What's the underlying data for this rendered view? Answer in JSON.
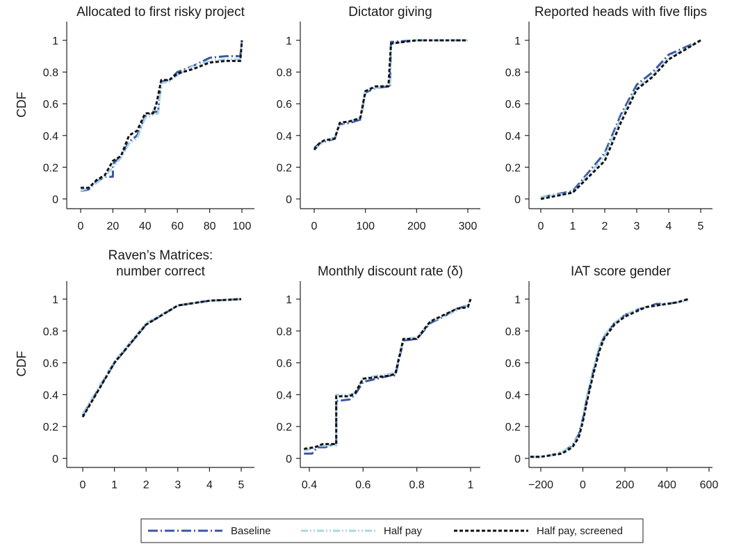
{
  "series_styles": [
    {
      "name": "Baseline",
      "color": "#3b56a0",
      "dash": "14,4,2,4",
      "width": 3
    },
    {
      "name": "Half pay",
      "color": "#a9d4e6",
      "dash": "10,3,2,3,2,3",
      "width": 3
    },
    {
      "name": "Half pay, screened",
      "color": "#111111",
      "dash": "5,3",
      "width": 3
    }
  ],
  "chart_data": [
    {
      "type": "line",
      "title": "Allocated to first risky project",
      "ylabel": "CDF",
      "xlim": [
        0,
        100
      ],
      "ylim": [
        0,
        1
      ],
      "xticks": [
        0,
        20,
        40,
        60,
        80,
        100
      ],
      "yticks": [
        0,
        0.2,
        0.4,
        0.6,
        0.8,
        1
      ],
      "series": [
        {
          "name": "Baseline",
          "x": [
            0,
            5,
            10,
            15,
            19,
            20,
            20,
            25,
            30,
            35,
            40,
            45,
            48,
            50,
            55,
            60,
            70,
            80,
            90,
            99,
            100
          ],
          "y": [
            0.05,
            0.06,
            0.11,
            0.14,
            0.14,
            0.14,
            0.22,
            0.27,
            0.36,
            0.4,
            0.52,
            0.55,
            0.55,
            0.74,
            0.75,
            0.8,
            0.84,
            0.89,
            0.9,
            0.9,
            1.0
          ]
        },
        {
          "name": "Half pay",
          "x": [
            0,
            5,
            10,
            15,
            20,
            25,
            28,
            30,
            35,
            40,
            45,
            48,
            50,
            55,
            60,
            70,
            80,
            90,
            99,
            100
          ],
          "y": [
            0.05,
            0.07,
            0.1,
            0.14,
            0.2,
            0.26,
            0.31,
            0.35,
            0.38,
            0.51,
            0.53,
            0.54,
            0.73,
            0.74,
            0.78,
            0.84,
            0.87,
            0.88,
            0.88,
            1.0
          ]
        },
        {
          "name": "Half pay, screened",
          "x": [
            0,
            5,
            10,
            15,
            20,
            25,
            30,
            35,
            40,
            45,
            47,
            50,
            55,
            60,
            70,
            80,
            90,
            99,
            100
          ],
          "y": [
            0.07,
            0.07,
            0.12,
            0.15,
            0.24,
            0.27,
            0.4,
            0.43,
            0.54,
            0.54,
            0.6,
            0.75,
            0.75,
            0.79,
            0.82,
            0.86,
            0.87,
            0.87,
            1.0
          ]
        }
      ]
    },
    {
      "type": "line",
      "title": "Dictator giving",
      "ylabel": "",
      "xlim": [
        0,
        300
      ],
      "ylim": [
        0,
        1
      ],
      "xticks": [
        0,
        100,
        200,
        300
      ],
      "yticks": [
        0,
        0.2,
        0.4,
        0.6,
        0.8,
        1
      ],
      "series": [
        {
          "name": "Baseline",
          "x": [
            0,
            10,
            20,
            40,
            50,
            70,
            90,
            100,
            120,
            148,
            150,
            200,
            300
          ],
          "y": [
            0.32,
            0.35,
            0.36,
            0.38,
            0.47,
            0.48,
            0.5,
            0.67,
            0.7,
            0.71,
            0.99,
            1.0,
            1.0
          ]
        },
        {
          "name": "Half pay",
          "x": [
            0,
            10,
            20,
            40,
            50,
            70,
            90,
            100,
            120,
            148,
            150,
            200,
            300
          ],
          "y": [
            0.31,
            0.34,
            0.36,
            0.39,
            0.47,
            0.49,
            0.51,
            0.68,
            0.7,
            0.72,
            0.98,
            1.0,
            1.0
          ]
        },
        {
          "name": "Half pay, screened",
          "x": [
            0,
            10,
            20,
            40,
            50,
            70,
            90,
            100,
            120,
            145,
            150,
            200,
            300
          ],
          "y": [
            0.31,
            0.35,
            0.37,
            0.38,
            0.48,
            0.49,
            0.51,
            0.68,
            0.71,
            0.71,
            0.98,
            1.0,
            1.0
          ]
        }
      ]
    },
    {
      "type": "line",
      "title": "Reported heads with five flips",
      "ylabel": "",
      "xlim": [
        0,
        5
      ],
      "ylim": [
        0,
        1
      ],
      "xticks": [
        0,
        1,
        2,
        3,
        4,
        5
      ],
      "yticks": [
        0,
        0.2,
        0.4,
        0.6,
        0.8,
        1
      ],
      "series": [
        {
          "name": "Baseline",
          "x": [
            0,
            1,
            2,
            2.5,
            3,
            3.5,
            4,
            5
          ],
          "y": [
            0.01,
            0.05,
            0.29,
            0.53,
            0.72,
            0.8,
            0.91,
            1.0
          ]
        },
        {
          "name": "Half pay",
          "x": [
            0,
            1,
            2,
            2.5,
            3,
            3.5,
            4,
            5
          ],
          "y": [
            0.01,
            0.04,
            0.27,
            0.51,
            0.7,
            0.78,
            0.89,
            1.0
          ]
        },
        {
          "name": "Half pay, screened",
          "x": [
            0,
            1,
            2,
            2.5,
            3,
            3.5,
            4,
            5
          ],
          "y": [
            0.0,
            0.04,
            0.24,
            0.48,
            0.69,
            0.77,
            0.88,
            1.0
          ]
        }
      ]
    },
    {
      "type": "line",
      "title": "Raven’s Matrices:\nnumber correct",
      "ylabel": "CDF",
      "xlim": [
        0,
        5
      ],
      "ylim": [
        0,
        1
      ],
      "xticks": [
        0,
        1,
        2,
        3,
        4,
        5
      ],
      "yticks": [
        0,
        0.2,
        0.4,
        0.6,
        0.8,
        1
      ],
      "series": [
        {
          "name": "Baseline",
          "x": [
            0,
            1,
            2,
            3,
            4,
            5
          ],
          "y": [
            0.27,
            0.6,
            0.84,
            0.96,
            0.99,
            1.0
          ]
        },
        {
          "name": "Half pay",
          "x": [
            0,
            1,
            2,
            3,
            4,
            5
          ],
          "y": [
            0.28,
            0.61,
            0.85,
            0.96,
            0.99,
            1.0
          ]
        },
        {
          "name": "Half pay, screened",
          "x": [
            0,
            1,
            2,
            3,
            4,
            5
          ],
          "y": [
            0.26,
            0.6,
            0.84,
            0.96,
            0.99,
            1.0
          ]
        }
      ]
    },
    {
      "type": "line",
      "title": "Monthly discount rate (δ)",
      "ylabel": "",
      "xlim": [
        0.38,
        1.0
      ],
      "ylim": [
        0,
        1
      ],
      "xticks": [
        0.4,
        0.6,
        0.8,
        1
      ],
      "yticks": [
        0,
        0.2,
        0.4,
        0.6,
        0.8,
        1
      ],
      "series": [
        {
          "name": "Baseline",
          "x": [
            0.38,
            0.41,
            0.43,
            0.46,
            0.49,
            0.5,
            0.5,
            0.55,
            0.57,
            0.6,
            0.65,
            0.7,
            0.72,
            0.75,
            0.8,
            0.85,
            0.9,
            0.95,
            0.99,
            1.0
          ],
          "y": [
            0.03,
            0.03,
            0.07,
            0.07,
            0.09,
            0.09,
            0.36,
            0.37,
            0.4,
            0.48,
            0.5,
            0.52,
            0.52,
            0.74,
            0.75,
            0.85,
            0.89,
            0.94,
            0.96,
            1.0
          ]
        },
        {
          "name": "Half pay",
          "x": [
            0.38,
            0.41,
            0.44,
            0.47,
            0.5,
            0.5,
            0.55,
            0.57,
            0.6,
            0.65,
            0.7,
            0.72,
            0.75,
            0.8,
            0.85,
            0.9,
            0.95,
            0.99,
            1.0
          ],
          "y": [
            0.05,
            0.06,
            0.08,
            0.08,
            0.08,
            0.4,
            0.4,
            0.41,
            0.5,
            0.52,
            0.53,
            0.54,
            0.75,
            0.76,
            0.86,
            0.89,
            0.93,
            0.96,
            1.0
          ]
        },
        {
          "name": "Half pay, screened",
          "x": [
            0.38,
            0.42,
            0.45,
            0.5,
            0.5,
            0.55,
            0.57,
            0.6,
            0.65,
            0.7,
            0.72,
            0.75,
            0.8,
            0.85,
            0.9,
            0.95,
            0.99,
            1.0
          ],
          "y": [
            0.06,
            0.07,
            0.09,
            0.09,
            0.39,
            0.39,
            0.41,
            0.5,
            0.51,
            0.52,
            0.53,
            0.75,
            0.75,
            0.86,
            0.9,
            0.94,
            0.95,
            1.0
          ]
        }
      ]
    },
    {
      "type": "line",
      "title": "IAT score gender",
      "ylabel": "",
      "xlim": [
        -300,
        700
      ],
      "ylim": [
        0,
        1
      ],
      "xticks": [
        -200,
        0,
        200,
        400,
        600
      ],
      "xtick_labels": [
        "−200",
        "0",
        "200",
        "400",
        "600"
      ],
      "yticks": [
        0,
        0.2,
        0.4,
        0.6,
        0.8,
        1
      ],
      "series": [
        {
          "name": "Baseline",
          "x": [
            -250,
            -200,
            -150,
            -100,
            -50,
            -20,
            0,
            20,
            50,
            80,
            100,
            150,
            200,
            250,
            300,
            350,
            400,
            450,
            500
          ],
          "y": [
            0.01,
            0.01,
            0.02,
            0.04,
            0.08,
            0.15,
            0.25,
            0.38,
            0.55,
            0.7,
            0.76,
            0.85,
            0.9,
            0.93,
            0.95,
            0.97,
            0.97,
            0.98,
            1.0
          ]
        },
        {
          "name": "Half pay",
          "x": [
            -250,
            -200,
            -150,
            -100,
            -50,
            -20,
            0,
            20,
            50,
            80,
            100,
            150,
            200,
            250,
            300,
            350,
            400,
            450,
            500
          ],
          "y": [
            0.01,
            0.01,
            0.02,
            0.04,
            0.08,
            0.14,
            0.26,
            0.4,
            0.56,
            0.71,
            0.77,
            0.85,
            0.9,
            0.93,
            0.95,
            0.96,
            0.97,
            0.98,
            0.99
          ]
        },
        {
          "name": "Half pay, screened",
          "x": [
            -250,
            -200,
            -150,
            -100,
            -50,
            -20,
            0,
            20,
            50,
            80,
            100,
            150,
            200,
            250,
            300,
            350,
            400,
            450,
            500
          ],
          "y": [
            0.01,
            0.01,
            0.02,
            0.03,
            0.07,
            0.13,
            0.23,
            0.36,
            0.53,
            0.68,
            0.75,
            0.84,
            0.89,
            0.92,
            0.95,
            0.96,
            0.97,
            0.98,
            1.0
          ]
        }
      ]
    }
  ]
}
